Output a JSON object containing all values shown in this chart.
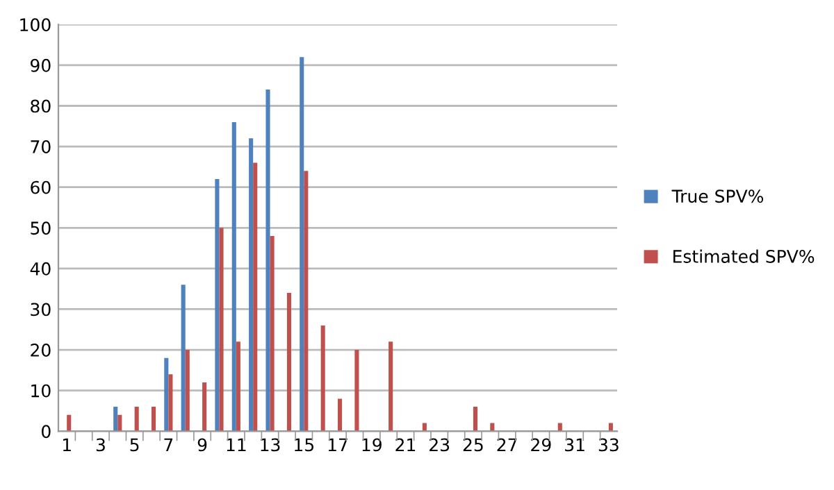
{
  "chart_data": {
    "type": "bar",
    "categories": [
      "1",
      null,
      "3",
      null,
      "5",
      null,
      "7",
      null,
      "9",
      null,
      "11",
      null,
      "13",
      null,
      "15",
      null,
      "17",
      null,
      "19",
      null,
      "21",
      null,
      "23",
      null,
      "25",
      null,
      "27",
      null,
      "29",
      null,
      "31",
      null,
      "33"
    ],
    "series": [
      {
        "name": "True SPV%",
        "color": "#4f81bd",
        "values": [
          0,
          0,
          0,
          6,
          0,
          0,
          18,
          36,
          0,
          62,
          76,
          72,
          84,
          0,
          92,
          0,
          0,
          0,
          0,
          0,
          0,
          0,
          0,
          0,
          0,
          0,
          0,
          0,
          0,
          0,
          0,
          0,
          0
        ]
      },
      {
        "name": "Estimated SPV%",
        "color": "#c0504d",
        "values": [
          4,
          0,
          0,
          4,
          6,
          6,
          14,
          20,
          12,
          50,
          22,
          66,
          48,
          34,
          64,
          26,
          8,
          20,
          0,
          22,
          0,
          2,
          0,
          0,
          6,
          2,
          0,
          0,
          0,
          2,
          0,
          0,
          2
        ]
      }
    ],
    "ylim": [
      0,
      100
    ],
    "yticks": [
      0,
      10,
      20,
      30,
      40,
      50,
      60,
      70,
      80,
      90,
      100
    ],
    "grid": "y",
    "legend": "right"
  }
}
